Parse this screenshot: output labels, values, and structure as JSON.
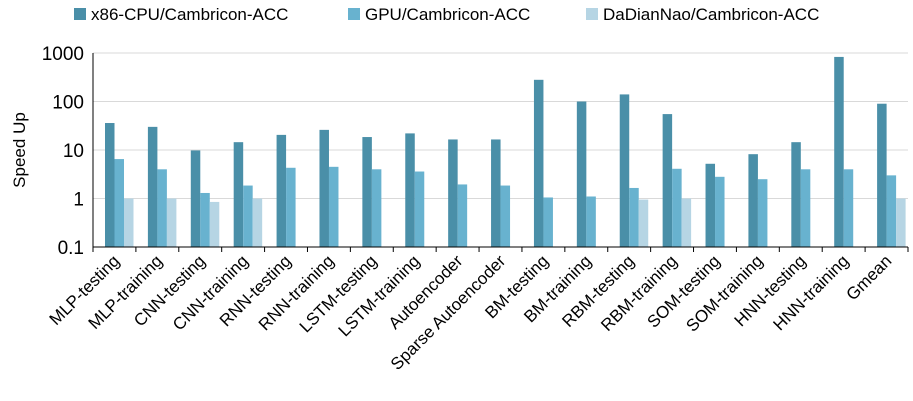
{
  "chart_data": {
    "type": "bar",
    "title": "",
    "xlabel": "",
    "ylabel": "Speed Up",
    "yscale": "log",
    "ylim": [
      0.1,
      1000
    ],
    "yticks": [
      0.1,
      1,
      10,
      100,
      1000
    ],
    "ytick_labels": [
      "0.1",
      "1",
      "10",
      "100",
      "1000"
    ],
    "grid": "horizontal",
    "legend_position": "top",
    "categories": [
      "MLP-testing",
      "MLP-training",
      "CNN-testing",
      "CNN-training",
      "RNN-testing",
      "RNN-training",
      "LSTM-testing",
      "LSTM-training",
      "Autoencoder",
      "Sparse Autoencoder",
      "BM-testing",
      "BM-training",
      "RBM-testing",
      "RBM-training",
      "SOM-testing",
      "SOM-training",
      "HNN-testing",
      "HNN-training",
      "Gmean"
    ],
    "series": [
      {
        "name": "x86-CPU/Cambricon-ACC",
        "color": "#4a8fa8",
        "values": [
          36,
          30,
          9.8,
          14.5,
          20.5,
          26,
          18.5,
          22,
          16.5,
          16.5,
          280,
          100,
          140,
          55,
          5.2,
          8.2,
          14.5,
          830,
          90
        ]
      },
      {
        "name": "GPU/Cambricon-ACC",
        "color": "#68b2cf",
        "values": [
          6.5,
          4.0,
          1.3,
          1.85,
          4.3,
          4.5,
          4.0,
          3.6,
          1.95,
          1.85,
          1.05,
          1.1,
          1.65,
          4.1,
          2.8,
          2.5,
          4.0,
          4.0,
          3.0
        ]
      },
      {
        "name": "DaDianNao/Cambricon-ACC",
        "color": "#b6d5e4",
        "values": [
          1.0,
          1.0,
          0.85,
          1.0,
          null,
          null,
          null,
          null,
          null,
          null,
          null,
          null,
          0.95,
          1.0,
          null,
          null,
          null,
          null,
          1.0
        ]
      }
    ]
  }
}
